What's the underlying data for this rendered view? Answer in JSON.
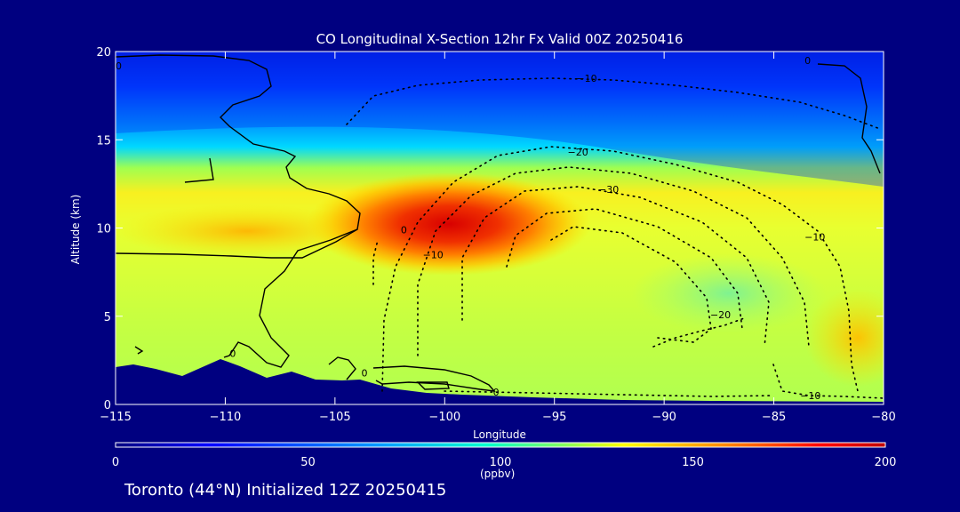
{
  "title": "CO Longitudinal X-Section 12hr  Fx Valid 00Z 20250416",
  "footer": "Toronto (44°N) Initialized 12Z 20250415",
  "colors": {
    "background": "#000080",
    "terrain": "#000080",
    "text": "#ffffff"
  },
  "chart_data": {
    "type": "heatmap",
    "title": "CO Longitudinal X-Section 12hr  Fx Valid 00Z 20250416",
    "xlabel": "Longitude",
    "ylabel": "Altitude (km)",
    "xlim": [
      -115,
      -80
    ],
    "ylim": [
      0,
      20
    ],
    "xticks": [
      -115,
      -110,
      -105,
      -100,
      -95,
      -90,
      -85,
      -80
    ],
    "yticks": [
      0,
      5,
      10,
      15,
      20
    ],
    "colorbar": {
      "label": "(ppbv)",
      "range": [
        0,
        200
      ],
      "ticks": [
        0,
        50,
        100,
        150,
        200
      ],
      "colormap": "rainbow"
    },
    "field_description_points": [
      {
        "lon": -100,
        "alt": 10.5,
        "co_ppbv": 195
      },
      {
        "lon": -104,
        "alt": 10,
        "co_ppbv": 160
      },
      {
        "lon": -95,
        "alt": 10,
        "co_ppbv": 155
      },
      {
        "lon": -110,
        "alt": 9,
        "co_ppbv": 125
      },
      {
        "lon": -100,
        "alt": 5,
        "co_ppbv": 120
      },
      {
        "lon": -88,
        "alt": 5,
        "co_ppbv": 105
      },
      {
        "lon": -81,
        "alt": 3,
        "co_ppbv": 130
      },
      {
        "lon": -100,
        "alt": 13.5,
        "co_ppbv": 90
      },
      {
        "lon": -108,
        "alt": 15,
        "co_ppbv": 55
      },
      {
        "lon": -100,
        "alt": 18,
        "co_ppbv": 30
      },
      {
        "lon": -90,
        "alt": 17,
        "co_ppbv": 15
      }
    ],
    "contour_labels": [
      {
        "text": "0",
        "lon": -115,
        "alt": 19.2
      },
      {
        "text": "0",
        "lon": -102,
        "alt": 9.9
      },
      {
        "text": "0",
        "lon": -109.8,
        "alt": 2.9
      },
      {
        "text": "0",
        "lon": -103.8,
        "alt": 1.8
      },
      {
        "text": "0",
        "lon": -97.8,
        "alt": 0.7
      },
      {
        "text": "0",
        "lon": -83.6,
        "alt": 19.5
      },
      {
        "text": "-10",
        "lon": -94,
        "alt": 18.5
      },
      {
        "text": "-20",
        "lon": -94.4,
        "alt": 14.3
      },
      {
        "text": "-30",
        "lon": -93,
        "alt": 12.2
      },
      {
        "text": "-10",
        "lon": -101,
        "alt": 8.5
      },
      {
        "text": "-10",
        "lon": -83.6,
        "alt": 9.5
      },
      {
        "text": "-20",
        "lon": -87.9,
        "alt": 5.1
      },
      {
        "text": "-10",
        "lon": -83.8,
        "alt": 0.5
      }
    ]
  }
}
